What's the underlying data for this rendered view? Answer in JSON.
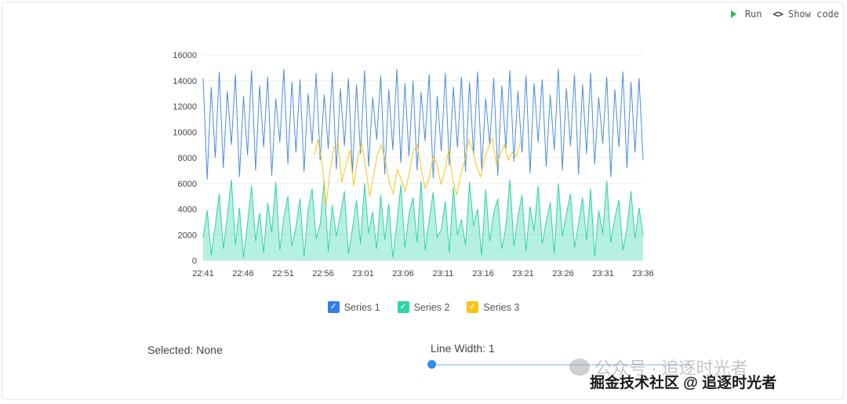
{
  "toolbar": {
    "run_label": "Run",
    "show_code_label": "Show code",
    "run_icon": "play-icon",
    "code_icon": "code-brackets-icon",
    "code_glyph": "<>"
  },
  "chart_data": {
    "type": "area",
    "y_ticks": [
      "0",
      "2000",
      "4000",
      "6000",
      "8000",
      "10000",
      "12000",
      "14000",
      "16000"
    ],
    "ylim": [
      0,
      16000
    ],
    "x_ticks": [
      "22:41",
      "22:46",
      "22:51",
      "22:56",
      "23:01",
      "23:06",
      "23:11",
      "23:16",
      "23:21",
      "23:26",
      "23:31",
      "23:36"
    ],
    "x_range": [
      "22:41",
      "23:36"
    ],
    "grid": true,
    "legend_position": "bottom-center",
    "series": [
      {
        "name": "Series 1",
        "color": "#4a8de0",
        "style": "line",
        "sample_every_seconds": 30,
        "values": [
          14200,
          6300,
          13500,
          8000,
          14700,
          7200,
          13200,
          9000,
          14500,
          6500,
          12800,
          8200,
          14800,
          7000,
          13600,
          8800,
          14300,
          6600,
          12600,
          9200,
          14900,
          7500,
          13900,
          8400,
          14100,
          6900,
          13000,
          9100,
          14600,
          7800,
          12900,
          8700,
          14700,
          7100,
          13400,
          8900,
          14200,
          6800,
          13700,
          8300,
          14800,
          7300,
          12700,
          9400,
          14400,
          6700,
          13300,
          8600,
          14900,
          7600,
          13800,
          8100,
          14000,
          7000,
          13100,
          9300,
          14500,
          6400,
          12800,
          8500,
          14600,
          7400,
          13500,
          8800,
          14300,
          6900,
          13900,
          8200,
          14700,
          7100,
          12600,
          9000,
          14200,
          6600,
          13600,
          8700,
          14800,
          7700,
          13200,
          8400,
          14400,
          6800,
          13800,
          9200,
          14100,
          7300,
          12900,
          8600,
          14900,
          7000,
          13400,
          8900,
          14500,
          6700,
          13700,
          8300,
          14600,
          7500,
          12700,
          9100,
          14300,
          6500,
          13300,
          8800,
          14700,
          7200,
          13900,
          8400,
          14200,
          7800
        ],
        "stroke_width": 1
      },
      {
        "name": "Series 2",
        "color": "#2ed3a8",
        "style": "area",
        "sample_every_seconds": 30,
        "values": [
          1800,
          3900,
          400,
          2700,
          5200,
          900,
          3400,
          6300,
          1200,
          4100,
          200,
          2900,
          5800,
          1500,
          3700,
          600,
          4500,
          2200,
          6100,
          800,
          3300,
          5000,
          1100,
          2600,
          4800,
          300,
          3900,
          5600,
          1700,
          2800,
          6200,
          700,
          4300,
          1900,
          3500,
          5400,
          500,
          2500,
          4700,
          1300,
          6000,
          2100,
          3800,
          900,
          5100,
          1600,
          4400,
          200,
          2900,
          5900,
          1000,
          3600,
          4900,
          1400,
          6200,
          800,
          3100,
          5300,
          1800,
          2400,
          4600,
          600,
          5700,
          2000,
          3200,
          1200,
          6100,
          2700,
          4000,
          400,
          5500,
          1500,
          3700,
          4800,
          900,
          2600,
          6300,
          1100,
          3400,
          5100,
          700,
          4200,
          2300,
          5800,
          1300,
          3000,
          4500,
          500,
          6000,
          1900,
          3600,
          5200,
          1000,
          2800,
          4900,
          1600,
          5600,
          300,
          3900,
          2100,
          6200,
          1400,
          3300,
          4700,
          800,
          2500,
          5400,
          1700,
          4100,
          2000
        ],
        "stroke_width": 1
      },
      {
        "name": "Series 3",
        "color": "#f5c518",
        "style": "line",
        "sample_every_seconds": 30,
        "values": [
          null,
          null,
          null,
          null,
          null,
          null,
          null,
          null,
          null,
          null,
          null,
          null,
          null,
          null,
          null,
          null,
          null,
          null,
          null,
          null,
          null,
          null,
          null,
          null,
          null,
          null,
          null,
          null,
          8200,
          9400,
          7600,
          4300,
          6900,
          8800,
          9200,
          6100,
          7400,
          8600,
          5800,
          8000,
          9100,
          7300,
          5000,
          6600,
          8300,
          9000,
          7700,
          6000,
          5200,
          7100,
          6300,
          5400,
          6800,
          8500,
          9000,
          7200,
          5600,
          6400,
          8100,
          7500,
          5900,
          7000,
          8700,
          6200,
          5100,
          6700,
          7800,
          9400,
          8600,
          7300,
          6500,
          7900,
          8800,
          9500,
          7400,
          8300,
          9000,
          7800,
          8400,
          8100,
          9200,
          null,
          null,
          null,
          null,
          null,
          null,
          null,
          null,
          null,
          null,
          null,
          null,
          null,
          null,
          null,
          null,
          null,
          null,
          null,
          null,
          null,
          null,
          null,
          null,
          null,
          null,
          null,
          null,
          null,
          null,
          null
        ],
        "stroke_width": 1
      }
    ]
  },
  "legend": {
    "items": [
      {
        "label": "Series 1",
        "color": "#2f80ed",
        "checked": true,
        "check_glyph": "✓"
      },
      {
        "label": "Series 2",
        "color": "#2ed3a8",
        "checked": true,
        "check_glyph": "✓"
      },
      {
        "label": "Series 3",
        "color": "#f5c518",
        "checked": true,
        "check_glyph": "✓"
      }
    ]
  },
  "status": {
    "selected_text": "Selected: None"
  },
  "controls": {
    "line_width_label": "Line Width: 1",
    "line_width_value": 1
  },
  "watermark": {
    "line1": "公众号 · 追逐时光者",
    "line2": "掘金技术社区 @ 追逐时光者",
    "icon": "wechat-icon"
  }
}
